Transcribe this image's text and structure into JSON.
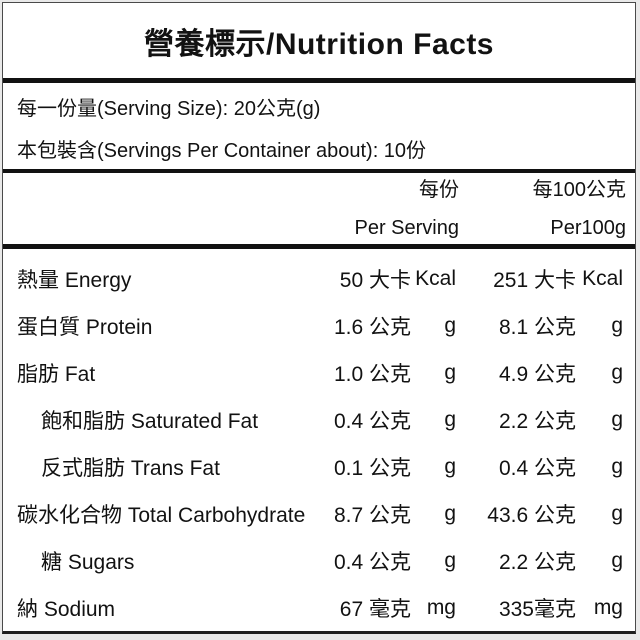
{
  "colors": {
    "page_background": "#e9e9e9",
    "label_background": "#ffffff",
    "rule_color": "#111111",
    "border_color": "#4a4a4a",
    "text_color": "#121212"
  },
  "title": "營養標示/Nutrition Facts",
  "serving_info": {
    "serving_size": "每一份量(Serving Size): 20公克(g)",
    "servings_per_container": "本包裝含(Servings Per Container about): 10份"
  },
  "column_headers": {
    "per_serving_zh": "每份",
    "per_serving_en": "Per Serving",
    "per_100g_zh": "每100公克",
    "per_100g_en": "Per100g"
  },
  "nutrients": [
    {
      "label": "熱量 Energy",
      "indent": false,
      "per_serving": "50 大卡",
      "per_serving_unit": "Kcal",
      "per_100g": "251 大卡",
      "per_100g_unit": "Kcal"
    },
    {
      "label": "蛋白質 Protein",
      "indent": false,
      "per_serving": "1.6 公克",
      "per_serving_unit": "g",
      "per_100g": "8.1 公克",
      "per_100g_unit": "g"
    },
    {
      "label": "脂肪 Fat",
      "indent": false,
      "per_serving": "1.0 公克",
      "per_serving_unit": "g",
      "per_100g": "4.9 公克",
      "per_100g_unit": "g"
    },
    {
      "label": "飽和脂肪 Saturated Fat",
      "indent": true,
      "per_serving": "0.4 公克",
      "per_serving_unit": "g",
      "per_100g": "2.2 公克",
      "per_100g_unit": "g"
    },
    {
      "label": "反式脂肪 Trans Fat",
      "indent": true,
      "per_serving": "0.1 公克",
      "per_serving_unit": "g",
      "per_100g": "0.4 公克",
      "per_100g_unit": "g"
    },
    {
      "label": "碳水化合物 Total Carbohydrate",
      "indent": false,
      "per_serving": "8.7 公克",
      "per_serving_unit": "g",
      "per_100g": "43.6 公克",
      "per_100g_unit": "g"
    },
    {
      "label": "糖 Sugars",
      "indent": true,
      "per_serving": "0.4 公克",
      "per_serving_unit": "g",
      "per_100g": "2.2 公克",
      "per_100g_unit": "g"
    },
    {
      "label": "納 Sodium",
      "indent": false,
      "per_serving": "67 毫克",
      "per_serving_unit": "mg",
      "per_100g": "335毫克",
      "per_100g_unit": "mg"
    }
  ]
}
